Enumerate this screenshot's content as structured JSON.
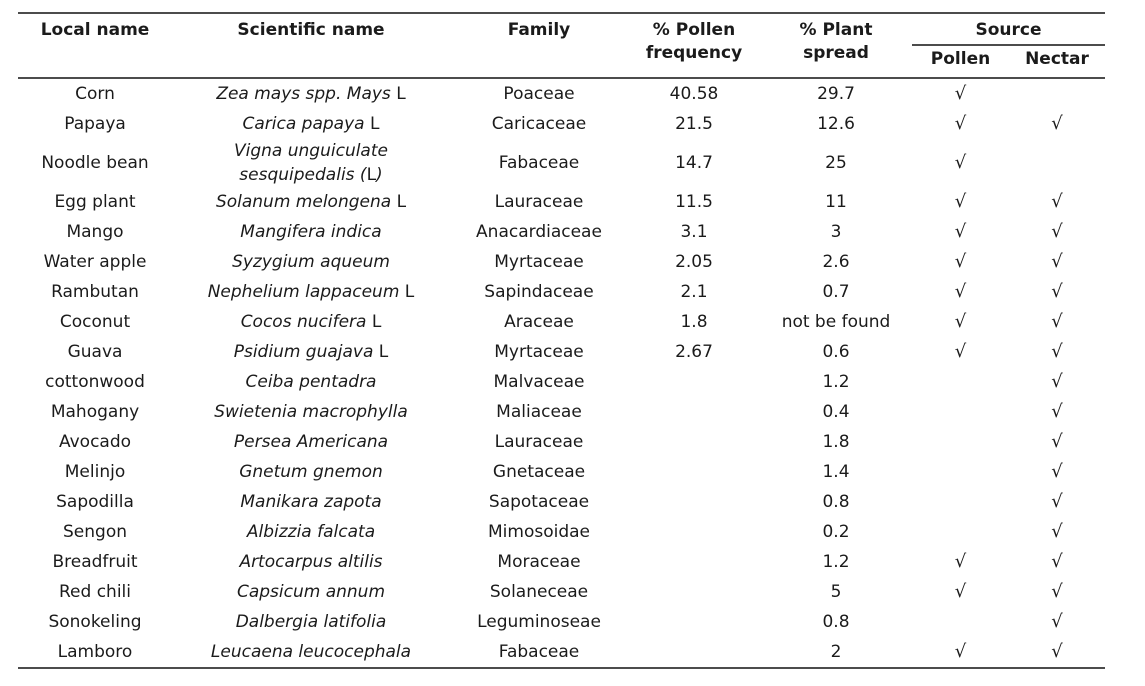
{
  "table": {
    "check_glyph": "√",
    "headers": {
      "local": "Local name",
      "scientific": "Scientific name",
      "family": "Family",
      "pollen_frequency": "% Pollen frequency",
      "plant_spread": "% Plant spread",
      "source": "Source",
      "source_pollen": "Pollen",
      "source_nectar": "Nectar"
    },
    "rows": [
      {
        "local": "Corn",
        "sci": [
          {
            "i": 1,
            "t": "Zea mays spp. Mays"
          },
          {
            "i": 0,
            "t": " L"
          }
        ],
        "family": "Poaceae",
        "pollen_freq": "40.58",
        "plant_spread": "29.7",
        "pollen": true,
        "nectar": false
      },
      {
        "local": "Papaya",
        "sci": [
          {
            "i": 1,
            "t": "Carica papaya"
          },
          {
            "i": 0,
            "t": " L"
          }
        ],
        "family": "Caricaceae",
        "pollen_freq": "21.5",
        "plant_spread": "12.6",
        "pollen": true,
        "nectar": true
      },
      {
        "local": "Noodle bean",
        "sci": [
          {
            "i": 1,
            "t": "Vigna unguiculate"
          },
          {
            "br": 1
          },
          {
            "i": 1,
            "t": "sesquipedalis ("
          },
          {
            "i": 0,
            "t": "L"
          },
          {
            "i": 1,
            "t": ")"
          }
        ],
        "family": "Fabaceae",
        "pollen_freq": "14.7",
        "plant_spread": "25",
        "pollen": true,
        "nectar": false
      },
      {
        "local": "Egg plant",
        "sci": [
          {
            "i": 1,
            "t": "Solanum melongena"
          },
          {
            "i": 0,
            "t": " L"
          }
        ],
        "family": "Lauraceae",
        "pollen_freq": "11.5",
        "plant_spread": "11",
        "pollen": true,
        "nectar": true
      },
      {
        "local": "Mango",
        "sci": [
          {
            "i": 1,
            "t": "Mangifera indica"
          }
        ],
        "family": "Anacardiaceae",
        "pollen_freq": "3.1",
        "plant_spread": "3",
        "pollen": true,
        "nectar": true
      },
      {
        "local": "Water apple",
        "sci": [
          {
            "i": 1,
            "t": "Syzygium aqueum"
          }
        ],
        "family": "Myrtaceae",
        "pollen_freq": "2.05",
        "plant_spread": "2.6",
        "pollen": true,
        "nectar": true
      },
      {
        "local": "Rambutan",
        "sci": [
          {
            "i": 1,
            "t": "Nephelium lappaceum"
          },
          {
            "i": 0,
            "t": " L"
          }
        ],
        "family": "Sapindaceae",
        "pollen_freq": "2.1",
        "plant_spread": "0.7",
        "pollen": true,
        "nectar": true
      },
      {
        "local": "Coconut",
        "sci": [
          {
            "i": 1,
            "t": "Cocos nucifera"
          },
          {
            "i": 0,
            "t": " L"
          }
        ],
        "family": "Araceae",
        "pollen_freq": "1.8",
        "plant_spread": "not be found",
        "pollen": true,
        "nectar": true
      },
      {
        "local": "Guava",
        "sci": [
          {
            "i": 1,
            "t": "Psidium guajava"
          },
          {
            "i": 0,
            "t": " L"
          }
        ],
        "family": "Myrtaceae",
        "pollen_freq": "2.67",
        "plant_spread": "0.6",
        "pollen": true,
        "nectar": true
      },
      {
        "local": "cottonwood",
        "sci": [
          {
            "i": 1,
            "t": "Ceiba pentadra"
          }
        ],
        "family": "Malvaceae",
        "pollen_freq": "",
        "plant_spread": "1.2",
        "pollen": false,
        "nectar": true
      },
      {
        "local": "Mahogany",
        "sci": [
          {
            "i": 1,
            "t": "Swietenia macrophylla"
          }
        ],
        "family": "Maliaceae",
        "pollen_freq": "",
        "plant_spread": "0.4",
        "pollen": false,
        "nectar": true
      },
      {
        "local": "Avocado",
        "sci": [
          {
            "i": 1,
            "t": "Persea Americana"
          }
        ],
        "family": "Lauraceae",
        "pollen_freq": "",
        "plant_spread": "1.8",
        "pollen": false,
        "nectar": true
      },
      {
        "local": "Melinjo",
        "sci": [
          {
            "i": 1,
            "t": "Gnetum gnemon"
          }
        ],
        "family": "Gnetaceae",
        "pollen_freq": "",
        "plant_spread": "1.4",
        "pollen": false,
        "nectar": true
      },
      {
        "local": "Sapodilla",
        "sci": [
          {
            "i": 1,
            "t": "Manikara zapota"
          }
        ],
        "family": "Sapotaceae",
        "pollen_freq": "",
        "plant_spread": "0.8",
        "pollen": false,
        "nectar": true
      },
      {
        "local": "Sengon",
        "sci": [
          {
            "i": 1,
            "t": "Albizzia falcata"
          }
        ],
        "family": "Mimosoidae",
        "pollen_freq": "",
        "plant_spread": "0.2",
        "pollen": false,
        "nectar": true
      },
      {
        "local": "Breadfruit",
        "sci": [
          {
            "i": 1,
            "t": "Artocarpus altilis"
          }
        ],
        "family": "Moraceae",
        "pollen_freq": "",
        "plant_spread": "1.2",
        "pollen": true,
        "nectar": true
      },
      {
        "local": "Red chili",
        "sci": [
          {
            "i": 1,
            "t": "Capsicum annum"
          }
        ],
        "family": "Solaneceae",
        "pollen_freq": "",
        "plant_spread": "5",
        "pollen": true,
        "nectar": true
      },
      {
        "local": "Sonokeling",
        "sci": [
          {
            "i": 1,
            "t": "Dalbergia latifolia"
          }
        ],
        "family": "Leguminoseae",
        "pollen_freq": "",
        "plant_spread": "0.8",
        "pollen": false,
        "nectar": true
      },
      {
        "local": "Lamboro",
        "sci": [
          {
            "i": 1,
            "t": "Leucaena leucocephala"
          }
        ],
        "family": "Fabaceae",
        "pollen_freq": "",
        "plant_spread": "2",
        "pollen": true,
        "nectar": true
      }
    ]
  },
  "colors": {
    "text": "#1b1b1b",
    "rule": "#4c4c4c",
    "background": "#ffffff"
  }
}
